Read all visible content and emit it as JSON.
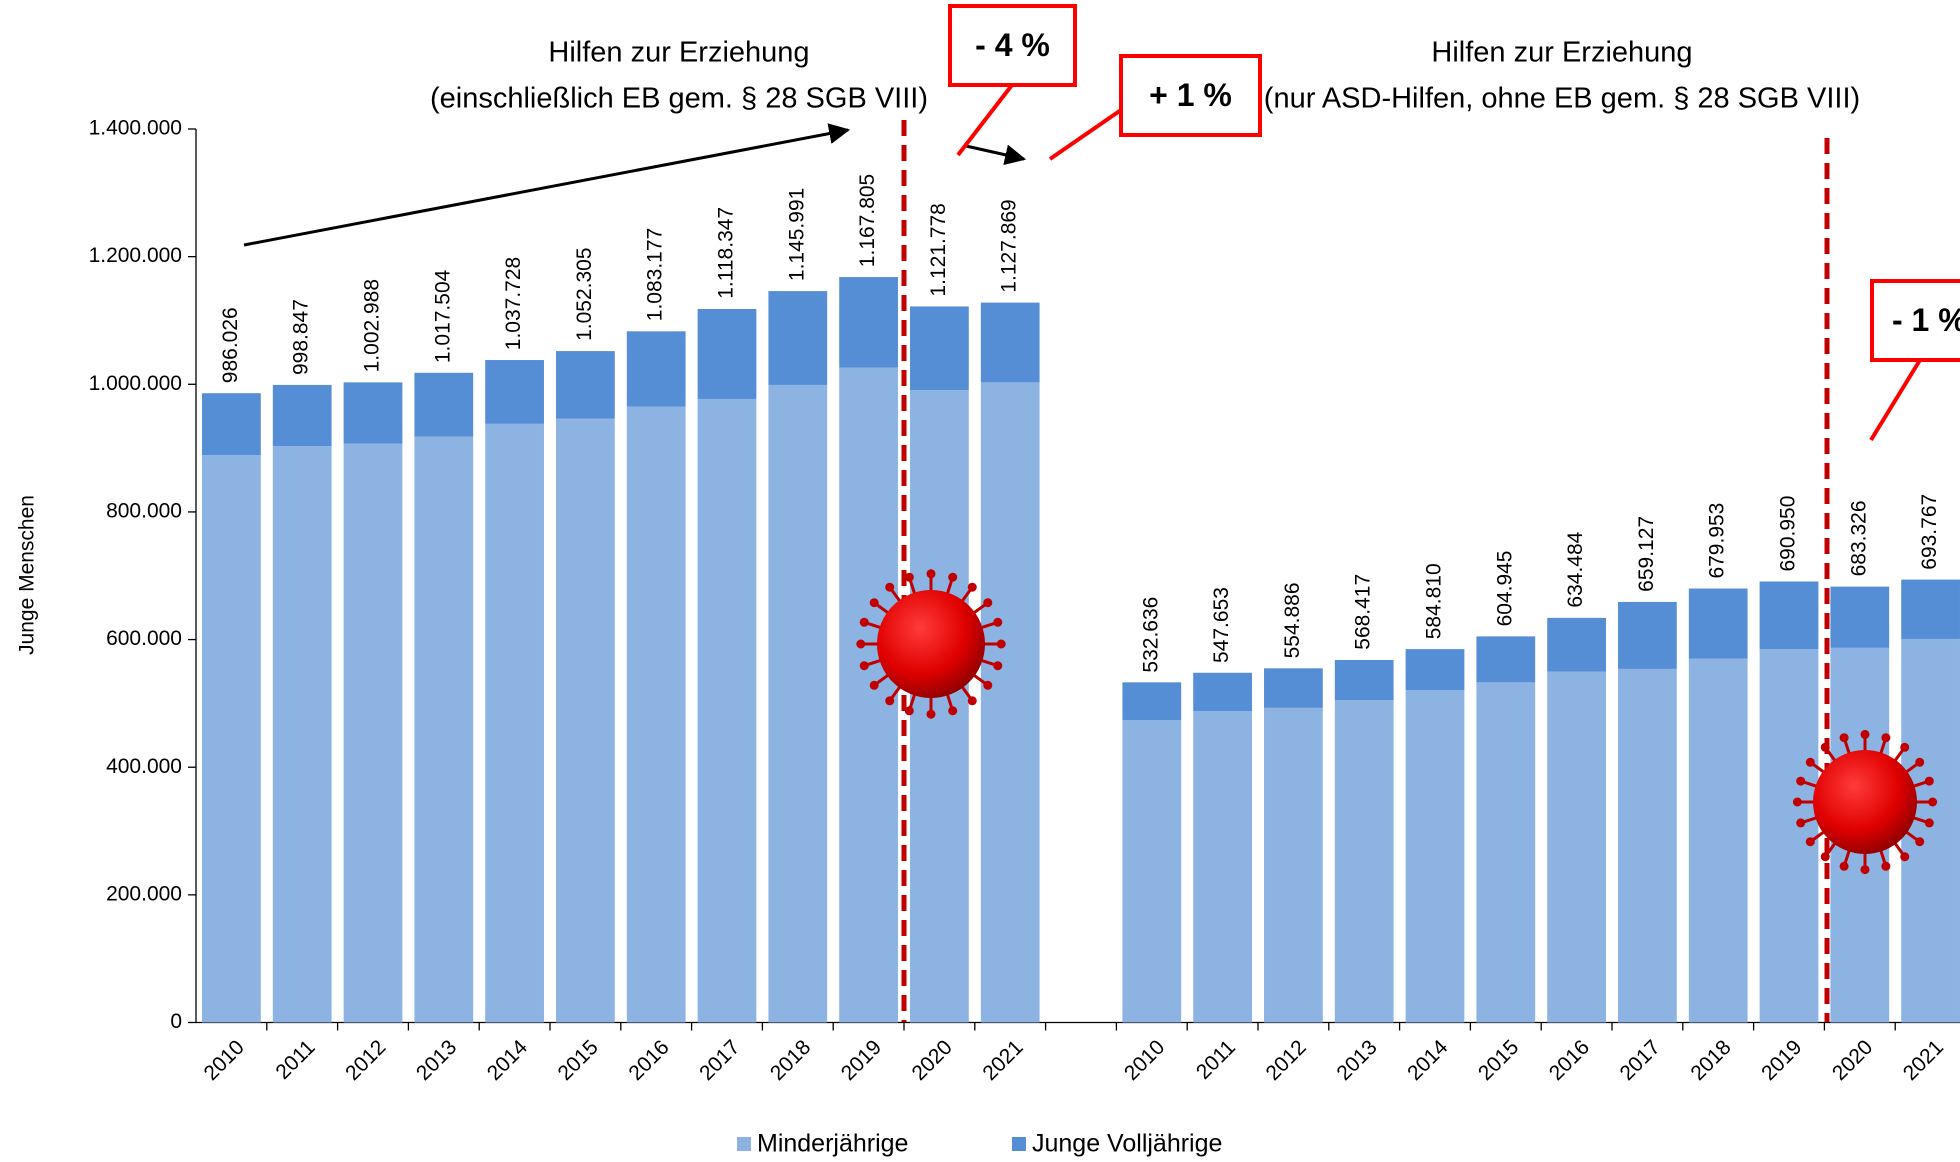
{
  "chart_data": {
    "type": "stacked_bar",
    "group_titles": [
      [
        "Hilfen zur Erziehung",
        "(einschließlich EB gem. § 28 SGB VIII)"
      ],
      [
        "Hilfen zur Erziehung",
        "(nur ASD-Hilfen, ohne EB gem. § 28 SGB VIII)"
      ]
    ],
    "callouts": [
      "- 4 %",
      "+ 1 %",
      "- 1 %"
    ],
    "y_label": "Junge Menschen",
    "categories": [
      "2010",
      "2011",
      "2012",
      "2013",
      "2014",
      "2015",
      "2016",
      "2017",
      "2018",
      "2019",
      "2020",
      "2021",
      null,
      "2010",
      "2011",
      "2012",
      "2013",
      "2014",
      "2015",
      "2016",
      "2017",
      "2018",
      "2019",
      "2020",
      "2021"
    ],
    "series": [
      {
        "name": "Minderjährige",
        "color": "#8db3e2",
        "values": [
          889000,
          903000,
          907000,
          918000,
          938000,
          946000,
          965000,
          977000,
          999000,
          1026000,
          991000,
          1003000,
          null,
          474000,
          488000,
          493000,
          505000,
          521000,
          533000,
          550000,
          554000,
          570000,
          585000,
          587000,
          601000
        ]
      },
      {
        "name": "Junge Volljährige",
        "color": "#558ed5",
        "values": [
          97000,
          96000,
          96000,
          100000,
          100000,
          106000,
          118000,
          141000,
          147000,
          142000,
          131000,
          125000,
          null,
          59000,
          60000,
          62000,
          63000,
          64000,
          72000,
          84000,
          105000,
          110000,
          106000,
          96000,
          93000
        ]
      }
    ],
    "totals": {
      "values": [
        986026,
        998847,
        1002988,
        1017504,
        1037728,
        1052305,
        1083177,
        1118347,
        1145991,
        1167805,
        1121778,
        1127869,
        null,
        532636,
        547653,
        554886,
        568417,
        584810,
        604945,
        634484,
        659127,
        679953,
        690950,
        683326,
        693767
      ],
      "value_labels": [
        "986.026",
        "998.847",
        "1.002.988",
        "1.017.504",
        "1.037.728",
        "1.052.305",
        "1.083.177",
        "1.118.347",
        "1.145.991",
        "1.167.805",
        "1.121.778",
        "1.127.869",
        null,
        "532.636",
        "547.653",
        "554.886",
        "568.417",
        "584.810",
        "604.945",
        "634.484",
        "659.127",
        "679.953",
        "690.950",
        "683.326",
        "693.767"
      ]
    },
    "ylim": [
      0,
      1400000
    ],
    "yticks": [
      0,
      {
        "value": 200000,
        "label": "200.000"
      },
      {
        "value": 400000,
        "label": "400.000"
      },
      {
        "value": 600000,
        "label": "600.000"
      },
      {
        "value": 800000,
        "label": "800.000"
      },
      {
        "value": 1000000,
        "label": "1.000.000"
      },
      {
        "value": 1200000,
        "label": "1.200.000"
      },
      {
        "value": 1400000,
        "label": "1.400.000"
      }
    ],
    "grid": false,
    "legend": "bottom"
  }
}
